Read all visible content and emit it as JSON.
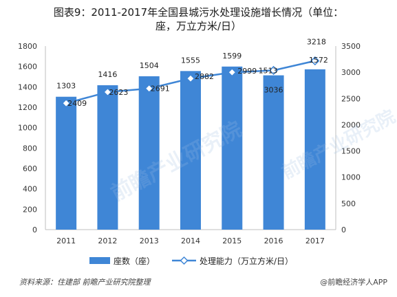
{
  "title_line1": "图表9：2011-2017年全国县城污水处理设施增长情况（单位：",
  "title_line2": "座，万立方米/日）",
  "source": "资料来源：住建部 前瞻产业研究院整理",
  "brand": "@前瞻经济学人APP",
  "watermark": "前瞻产业研究院",
  "chart_data": {
    "type": "bar",
    "categories": [
      "2011",
      "2012",
      "2013",
      "2014",
      "2015",
      "2016",
      "2017"
    ],
    "series": [
      {
        "name": "座数（座）",
        "kind": "bar",
        "axis": "left",
        "values": [
          1303,
          1416,
          1504,
          1555,
          1599,
          1513,
          1572
        ],
        "color": "#3f86d6"
      },
      {
        "name": "处理能力（万立方米/日）",
        "kind": "line",
        "axis": "right",
        "values": [
          2409,
          2623,
          2691,
          2882,
          2999,
          3036,
          3218
        ],
        "color": "#3f86d6"
      }
    ],
    "y_left": {
      "ylim": [
        0,
        1800
      ],
      "ticks": [
        0,
        200,
        400,
        600,
        800,
        1000,
        1200,
        1400,
        1600,
        1800
      ]
    },
    "y_right": {
      "ylim": [
        0,
        3500
      ],
      "ticks": [
        0,
        500,
        1000,
        1500,
        2000,
        2500,
        3000,
        3500
      ]
    },
    "grid": false,
    "legend_position": "bottom"
  }
}
